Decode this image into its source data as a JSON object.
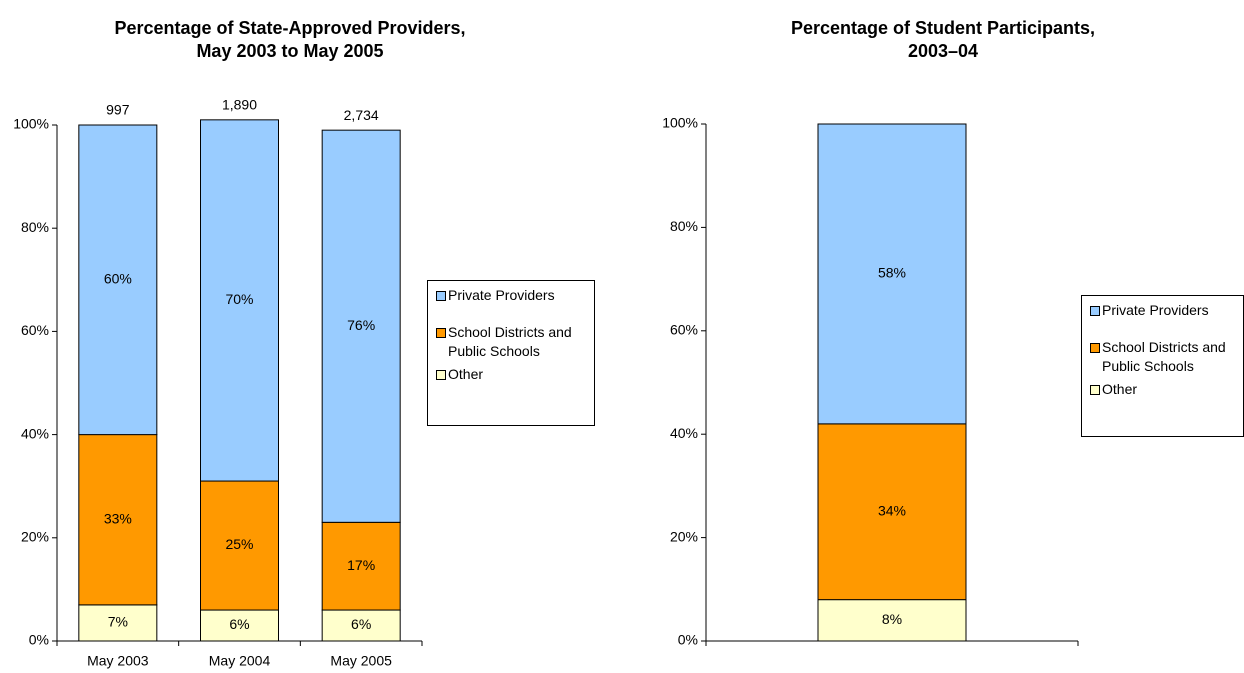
{
  "chart_data": [
    {
      "type": "stacked_bar",
      "title": "Percentage of State-Approved Providers,\nMay 2003 to May 2005",
      "categories": [
        "May 2003",
        "May 2004",
        "May 2005"
      ],
      "annotations": [
        "997",
        "1,890",
        "2,734"
      ],
      "series": [
        {
          "name": "Other",
          "color": "#ffffcc",
          "values": [
            7,
            6,
            6
          ],
          "value_labels": [
            "7%",
            "6%",
            "6%"
          ]
        },
        {
          "name": "School Districts and Public Schools",
          "color": "#ff9900",
          "values": [
            33,
            25,
            17
          ],
          "value_labels": [
            "33%",
            "25%",
            "17%"
          ]
        },
        {
          "name": "Private Providers",
          "color": "#99ccff",
          "values": [
            60,
            70,
            76
          ],
          "value_labels": [
            "60%",
            "70%",
            "76%"
          ]
        }
      ],
      "ylim": [
        0,
        100
      ],
      "yticks": [
        {
          "value": 0,
          "label": "0%"
        },
        {
          "value": 20,
          "label": "20%"
        },
        {
          "value": 40,
          "label": "40%"
        },
        {
          "value": 60,
          "label": "60%"
        },
        {
          "value": 80,
          "label": "80%"
        },
        {
          "value": 100,
          "label": "100%"
        }
      ],
      "legend": "right"
    },
    {
      "type": "stacked_bar",
      "title": "Percentage of Student Participants,\n2003–04",
      "categories": [
        null
      ],
      "series": [
        {
          "name": "Other",
          "color": "#ffffcc",
          "values": [
            8
          ],
          "value_labels": [
            "8%"
          ]
        },
        {
          "name": "School Districts and Public Schools",
          "color": "#ff9900",
          "values": [
            34
          ],
          "value_labels": [
            "34%"
          ]
        },
        {
          "name": "Private Providers",
          "color": "#99ccff",
          "values": [
            58
          ],
          "value_labels": [
            "58%"
          ]
        }
      ],
      "ylim": [
        0,
        100
      ],
      "yticks": [
        {
          "value": 0,
          "label": "0%"
        },
        {
          "value": 20,
          "label": "20%"
        },
        {
          "value": 40,
          "label": "40%"
        },
        {
          "value": 60,
          "label": "60%"
        },
        {
          "value": 80,
          "label": "80%"
        },
        {
          "value": 100,
          "label": "100%"
        }
      ],
      "legend": "right"
    }
  ]
}
